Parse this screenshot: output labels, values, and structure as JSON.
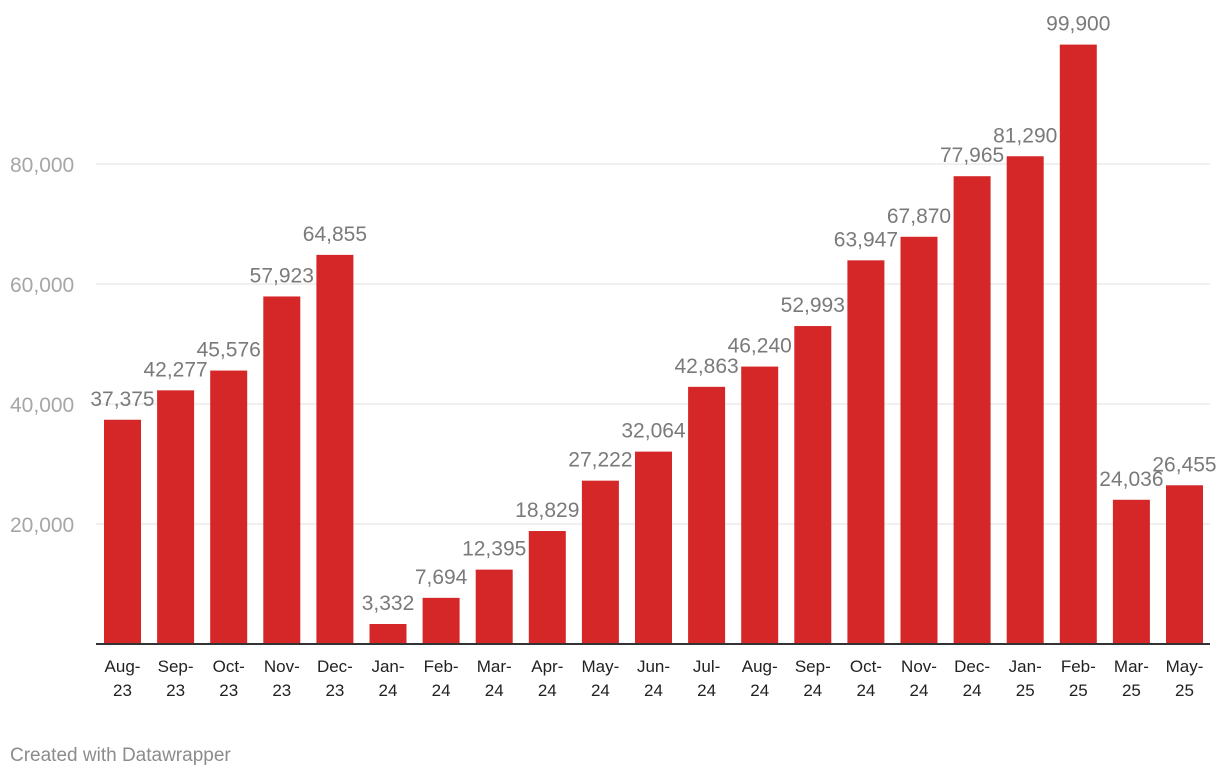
{
  "chart_data": {
    "type": "bar",
    "categories": [
      "Aug-23",
      "Sep-23",
      "Oct-23",
      "Nov-23",
      "Dec-23",
      "Jan-24",
      "Feb-24",
      "Mar-24",
      "Apr-24",
      "May-24",
      "Jun-24",
      "Jul-24",
      "Aug-24",
      "Sep-24",
      "Oct-24",
      "Nov-24",
      "Dec-24",
      "Jan-25",
      "Feb-25",
      "Mar-25",
      "May-25"
    ],
    "category_lines": [
      [
        "Aug-",
        "23"
      ],
      [
        "Sep-",
        "23"
      ],
      [
        "Oct-",
        "23"
      ],
      [
        "Nov-",
        "23"
      ],
      [
        "Dec-",
        "23"
      ],
      [
        "Jan-",
        "24"
      ],
      [
        "Feb-",
        "24"
      ],
      [
        "Mar-",
        "24"
      ],
      [
        "Apr-",
        "24"
      ],
      [
        "May-",
        "24"
      ],
      [
        "Jun-",
        "24"
      ],
      [
        "Jul-",
        "24"
      ],
      [
        "Aug-",
        "24"
      ],
      [
        "Sep-",
        "24"
      ],
      [
        "Oct-",
        "24"
      ],
      [
        "Nov-",
        "24"
      ],
      [
        "Dec-",
        "24"
      ],
      [
        "Jan-",
        "25"
      ],
      [
        "Feb-",
        "25"
      ],
      [
        "Mar-",
        "25"
      ],
      [
        "May-",
        "25"
      ]
    ],
    "values": [
      37375,
      42277,
      45576,
      57923,
      64855,
      3332,
      7694,
      12395,
      18829,
      27222,
      32064,
      42863,
      46240,
      52993,
      63947,
      67870,
      77965,
      81290,
      99900,
      24036,
      26455
    ],
    "value_labels": [
      "37,375",
      "42,277",
      "45,576",
      "57,923",
      "64,855",
      "3,332",
      "7,694",
      "12,395",
      "18,829",
      "27,222",
      "32,064",
      "42,863",
      "46,240",
      "52,993",
      "63,947",
      "67,870",
      "77,965",
      "81,290",
      "99,900",
      "24,036",
      "26,455"
    ],
    "y_ticks": [
      20000,
      40000,
      60000,
      80000
    ],
    "y_tick_labels": [
      "20,000",
      "40,000",
      "60,000",
      "80,000"
    ],
    "ylim": [
      0,
      100000
    ],
    "grid": true,
    "title": "",
    "xlabel": "",
    "ylabel": ""
  },
  "colors": {
    "bar": "#d62728",
    "grid": "#e2e2e2",
    "axis": "#333333"
  },
  "footer": {
    "credit": "Created with Datawrapper"
  }
}
